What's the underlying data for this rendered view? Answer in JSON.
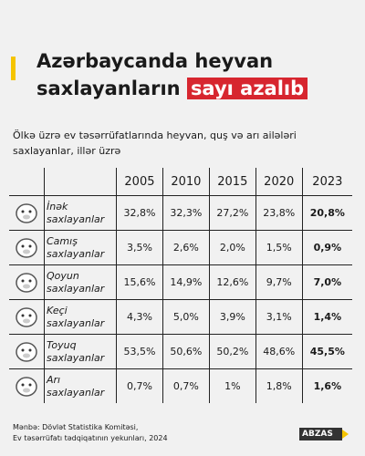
{
  "header": {
    "title_line1": "Azərbaycanda heyvan",
    "title_line2": "saxlayanların",
    "title_highlight": "sayı azalıb",
    "subtitle": "Ölkə üzrə ev təsərrüfatlarında heyvan, quş və arı ailələri saxlayanlar, illər üzrə"
  },
  "table": {
    "columns": [
      "2005",
      "2010",
      "2015",
      "2020",
      "2023"
    ],
    "rows": [
      {
        "name": "İnək",
        "suffix": "saxlayanlar",
        "values": [
          "32,8%",
          "32,3%",
          "27,2%",
          "23,8%",
          "20,8%"
        ]
      },
      {
        "name": "Camış",
        "suffix": "saxlayanlar",
        "values": [
          "3,5%",
          "2,6%",
          "2,0%",
          "1,5%",
          "0,9%"
        ]
      },
      {
        "name": "Qoyun",
        "suffix": "saxlayanlar",
        "values": [
          "15,6%",
          "14,9%",
          "12,6%",
          "9,7%",
          "7,0%"
        ]
      },
      {
        "name": "Keçi",
        "suffix": "saxlayanlar",
        "values": [
          "4,3%",
          "5,0%",
          "3,9%",
          "3,1%",
          "1,4%"
        ]
      },
      {
        "name": "Toyuq",
        "suffix": "saxlayanlar",
        "values": [
          "53,5%",
          "50,6%",
          "50,2%",
          "48,6%",
          "45,5%"
        ]
      },
      {
        "name": "Arı",
        "suffix": "saxlayanlar",
        "values": [
          "0,7%",
          "0,7%",
          "1%",
          "1,8%",
          "1,6%"
        ]
      }
    ]
  },
  "footer": {
    "source_line1": "Mənbə: Dövlət Statistika Komitəsi,",
    "source_line2": "Ev təsərrüfatı tədqiqatının yekunları, 2024",
    "logo": "ABZAS"
  }
}
